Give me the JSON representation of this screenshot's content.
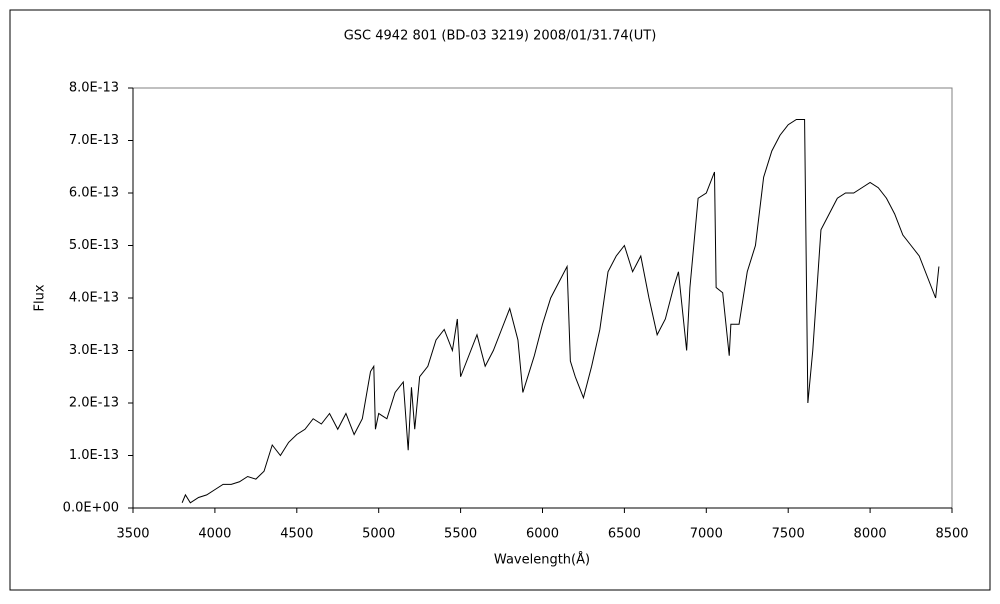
{
  "chart_data": {
    "type": "line",
    "title": "GSC 4942 801 (BD-03 3219)    2008/01/31.74(UT)",
    "x_label": "Wavelength(Å)",
    "y_label": "Flux",
    "color": "#000000",
    "grid": false,
    "xlim": [
      3500,
      8500
    ],
    "xticks": [
      3500,
      4000,
      4500,
      5000,
      5500,
      6000,
      6500,
      7000,
      7500,
      8000,
      8500
    ],
    "ylim": [
      0,
      8e-13
    ],
    "yticks": [
      {
        "value": 0,
        "label": "0.0E+00"
      },
      {
        "value": 1e-13,
        "label": "1.0E-13"
      },
      {
        "value": 2e-13,
        "label": "2.0E-13"
      },
      {
        "value": 3e-13,
        "label": "3.0E-13"
      },
      {
        "value": 4e-13,
        "label": "4.0E-13"
      },
      {
        "value": 5e-13,
        "label": "5.0E-13"
      },
      {
        "value": 6e-13,
        "label": "6.0E-13"
      },
      {
        "value": 7e-13,
        "label": "7.0E-13"
      },
      {
        "value": 8e-13,
        "label": "8.0E-13"
      }
    ],
    "x": [
      3800,
      3820,
      3850,
      3900,
      3950,
      4000,
      4050,
      4100,
      4150,
      4200,
      4250,
      4300,
      4350,
      4400,
      4450,
      4500,
      4550,
      4600,
      4650,
      4700,
      4750,
      4800,
      4850,
      4900,
      4950,
      4970,
      4980,
      5000,
      5050,
      5100,
      5150,
      5180,
      5200,
      5220,
      5250,
      5300,
      5350,
      5400,
      5450,
      5480,
      5500,
      5550,
      5600,
      5650,
      5700,
      5750,
      5800,
      5850,
      5880,
      5950,
      6000,
      6050,
      6100,
      6150,
      6170,
      6200,
      6250,
      6300,
      6350,
      6400,
      6450,
      6500,
      6550,
      6600,
      6650,
      6700,
      6750,
      6800,
      6830,
      6880,
      6900,
      6950,
      7000,
      7050,
      7060,
      7100,
      7140,
      7150,
      7200,
      7250,
      7300,
      7350,
      7400,
      7450,
      7500,
      7550,
      7600,
      7620,
      7650,
      7700,
      7750,
      7800,
      7850,
      7900,
      7950,
      8000,
      8050,
      8100,
      8150,
      8200,
      8250,
      8300,
      8350,
      8400,
      8420
    ],
    "values": [
      1e-14,
      2.5e-14,
      1e-14,
      2e-14,
      2.5e-14,
      3.5e-14,
      4.5e-14,
      4.5e-14,
      5e-14,
      6e-14,
      5.5e-14,
      7e-14,
      1.2e-13,
      1e-13,
      1.25e-13,
      1.4e-13,
      1.5e-13,
      1.7e-13,
      1.6e-13,
      1.8e-13,
      1.5e-13,
      1.8e-13,
      1.4e-13,
      1.7e-13,
      2.6e-13,
      2.7e-13,
      1.5e-13,
      1.8e-13,
      1.7e-13,
      2.2e-13,
      2.4e-13,
      1.1e-13,
      2.3e-13,
      1.5e-13,
      2.5e-13,
      2.7e-13,
      3.2e-13,
      3.4e-13,
      3e-13,
      3.6e-13,
      2.5e-13,
      2.9e-13,
      3.3e-13,
      2.7e-13,
      3e-13,
      3.4e-13,
      3.8e-13,
      3.2e-13,
      2.2e-13,
      2.9e-13,
      3.5e-13,
      4e-13,
      4.3e-13,
      4.6e-13,
      2.8e-13,
      2.5e-13,
      2.1e-13,
      2.7e-13,
      3.4e-13,
      4.5e-13,
      4.8e-13,
      5e-13,
      4.5e-13,
      4.8e-13,
      4e-13,
      3.3e-13,
      3.6e-13,
      4.2e-13,
      4.5e-13,
      3e-13,
      4.2e-13,
      5.9e-13,
      6e-13,
      6.4e-13,
      4.2e-13,
      4.1e-13,
      2.9e-13,
      3.5e-13,
      3.5e-13,
      4.5e-13,
      5e-13,
      6.3e-13,
      6.8e-13,
      7.1e-13,
      7.3e-13,
      7.4e-13,
      7.4e-13,
      2e-13,
      3e-13,
      5.3e-13,
      5.6e-13,
      5.9e-13,
      6e-13,
      6e-13,
      6.1e-13,
      6.2e-13,
      6.1e-13,
      5.9e-13,
      5.6e-13,
      5.2e-13,
      5e-13,
      4.8e-13,
      4.4e-13,
      4e-13,
      4.6e-13
    ]
  }
}
